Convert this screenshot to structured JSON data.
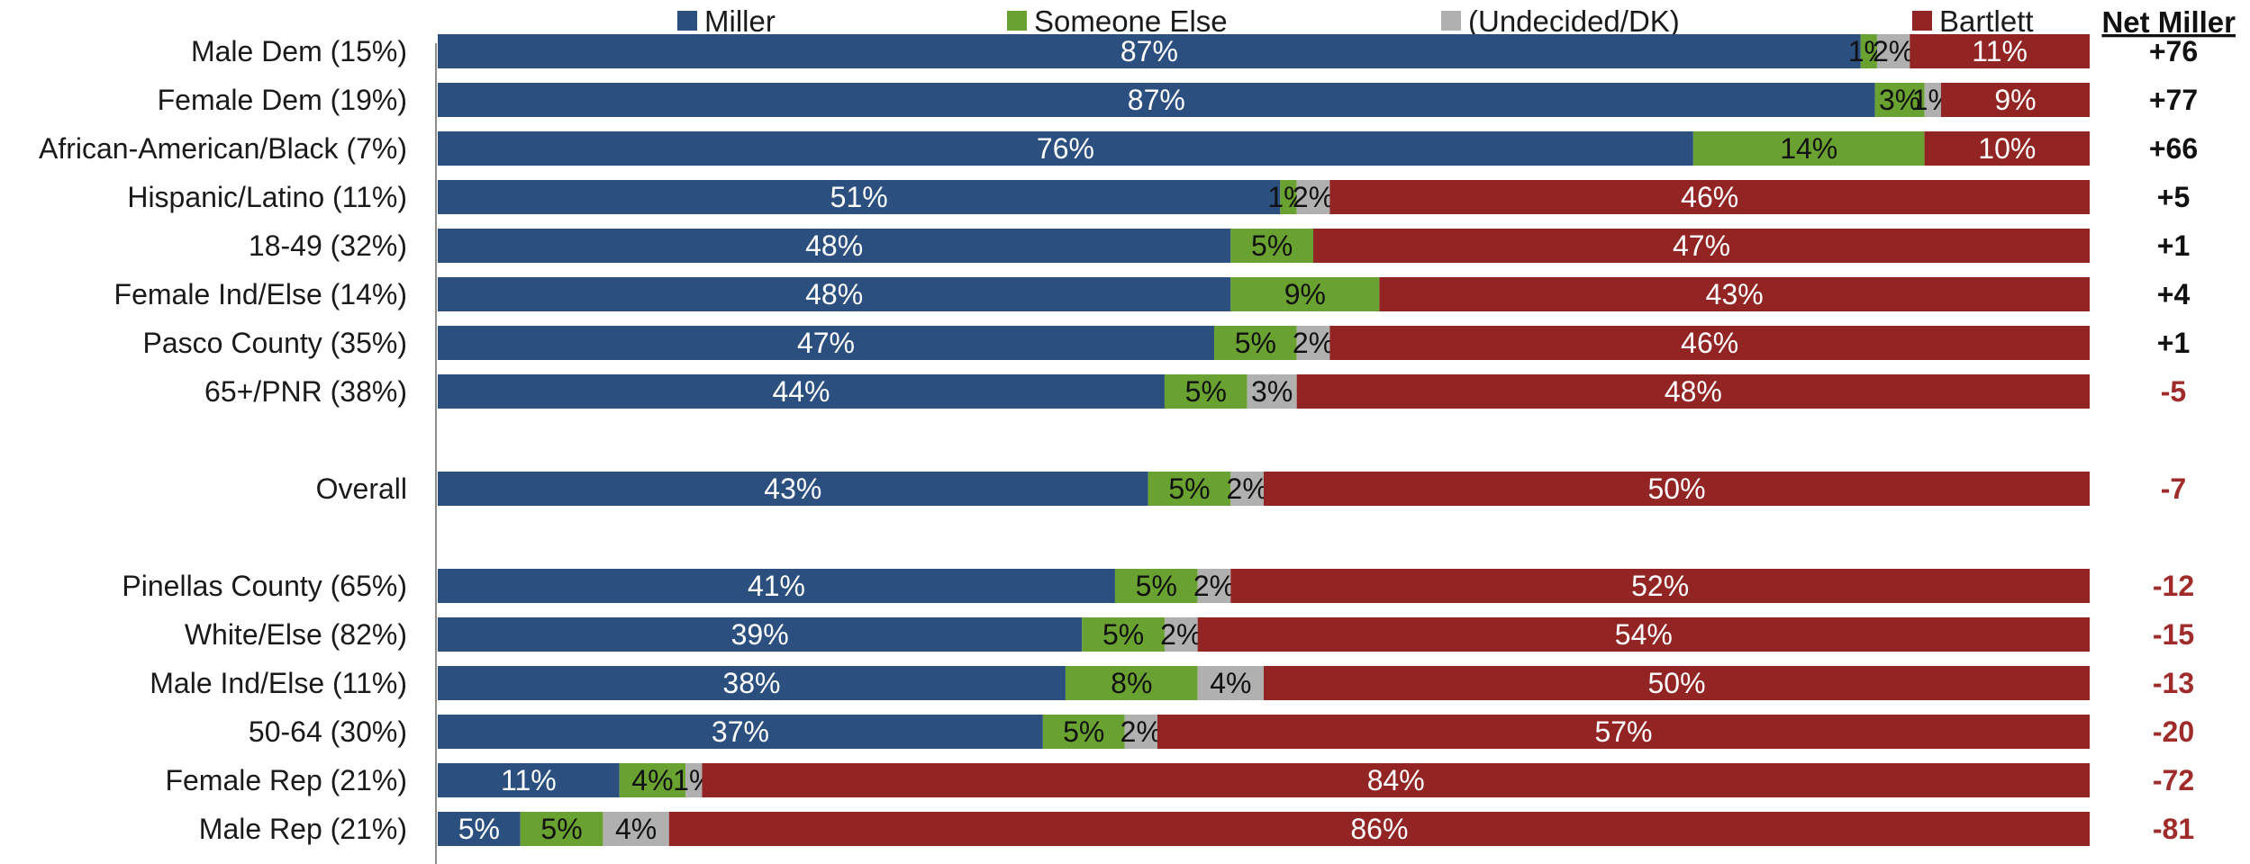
{
  "chart_data": {
    "type": "bar",
    "orientation": "horizontal",
    "stacked": true,
    "normalized": true,
    "grid": false,
    "legend_position": "top",
    "series": [
      {
        "name": "Miller",
        "color": "#2b4f7e",
        "label_color": "#ffffff"
      },
      {
        "name": "Someone Else",
        "color": "#6aa232",
        "label_color": "#111111"
      },
      {
        "name": "(Undecided/DK)",
        "color": "#b0b0b0",
        "label_color": "#111111"
      },
      {
        "name": "Bartlett",
        "color": "#922524",
        "label_color": "#ffffff"
      }
    ],
    "net_header": "Net Miller",
    "net_colors": {
      "positive": "#111111",
      "negative": "#a02b2b"
    },
    "rows": [
      {
        "category": "Male Dem (15%)",
        "values": [
          87,
          1,
          2,
          11
        ],
        "labels": [
          "87%",
          "1%",
          "2%",
          "11%"
        ],
        "net": "+76"
      },
      {
        "category": "Female Dem (19%)",
        "values": [
          87,
          3,
          1,
          9
        ],
        "labels": [
          "87%",
          "3%",
          "1%",
          "9%"
        ],
        "net": "+77"
      },
      {
        "category": "African-American/Black (7%)",
        "values": [
          76,
          14,
          0,
          10
        ],
        "labels": [
          "76%",
          "14%",
          "",
          "10%"
        ],
        "net": "+66"
      },
      {
        "category": "Hispanic/Latino (11%)",
        "values": [
          51,
          1,
          2,
          46
        ],
        "labels": [
          "51%",
          "1%",
          "2%",
          "46%"
        ],
        "net": "+5"
      },
      {
        "category": "18-49 (32%)",
        "values": [
          48,
          5,
          0,
          47
        ],
        "labels": [
          "48%",
          "5%",
          "",
          "47%"
        ],
        "net": "+1"
      },
      {
        "category": "Female Ind/Else (14%)",
        "values": [
          48,
          9,
          0,
          43
        ],
        "labels": [
          "48%",
          "9%",
          "",
          "43%"
        ],
        "net": "+4"
      },
      {
        "category": "Pasco County (35%)",
        "values": [
          47,
          5,
          2,
          46
        ],
        "labels": [
          "47%",
          "5%",
          "2%",
          "46%"
        ],
        "net": "+1"
      },
      {
        "category": "65+/PNR (38%)",
        "values": [
          44,
          5,
          3,
          48
        ],
        "labels": [
          "44%",
          "5%",
          "3%",
          "48%"
        ],
        "net": "-5"
      },
      {
        "category": "",
        "values": [],
        "labels": [],
        "net": "",
        "spacer": true
      },
      {
        "category": "Overall",
        "values": [
          43,
          5,
          2,
          50
        ],
        "labels": [
          "43%",
          "5%",
          "2%",
          "50%"
        ],
        "net": "-7"
      },
      {
        "category": "",
        "values": [],
        "labels": [],
        "net": "",
        "spacer": true
      },
      {
        "category": "Pinellas County (65%)",
        "values": [
          41,
          5,
          2,
          52
        ],
        "labels": [
          "41%",
          "5%",
          "2%",
          "52%"
        ],
        "net": "-12"
      },
      {
        "category": "White/Else (82%)",
        "values": [
          39,
          5,
          2,
          54
        ],
        "labels": [
          "39%",
          "5%",
          "2%",
          "54%"
        ],
        "net": "-15"
      },
      {
        "category": "Male Ind/Else (11%)",
        "values": [
          38,
          8,
          4,
          50
        ],
        "labels": [
          "38%",
          "8%",
          "4%",
          "50%"
        ],
        "net": "-13"
      },
      {
        "category": "50-64 (30%)",
        "values": [
          37,
          5,
          2,
          57
        ],
        "labels": [
          "37%",
          "5%",
          "2%",
          "57%"
        ],
        "net": "-20"
      },
      {
        "category": "Female Rep (21%)",
        "values": [
          11,
          4,
          1,
          84
        ],
        "labels": [
          "11%",
          "4%",
          "1%",
          "84%"
        ],
        "net": "-72"
      },
      {
        "category": "Male Rep (21%)",
        "values": [
          5,
          5,
          4,
          86
        ],
        "labels": [
          "5%",
          "5%",
          "4%",
          "86%"
        ],
        "net": "-81"
      }
    ]
  }
}
